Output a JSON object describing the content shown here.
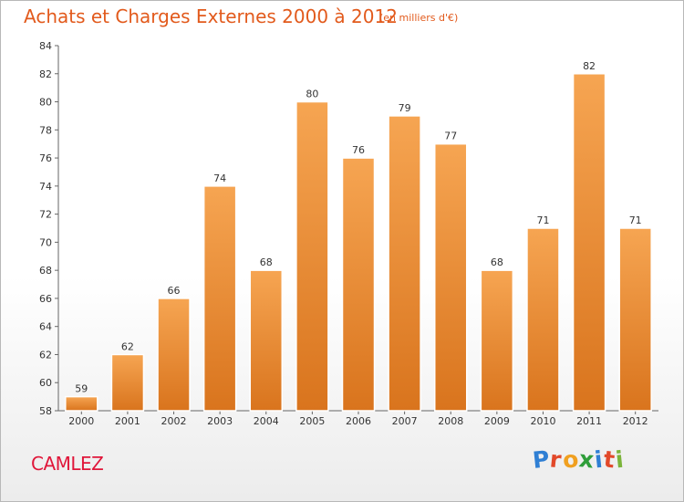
{
  "title": "Achats et Charges Externes 2000 à 2012",
  "subtitle": "(en milliers d'€)",
  "commune": "CAMLEZ",
  "logo": {
    "letters": [
      "P",
      "r",
      "o",
      "x",
      "i",
      "t",
      "i"
    ],
    "colors": [
      "#2f7fd4",
      "#e2492a",
      "#f0a020",
      "#2f9e3a",
      "#2f7fd4",
      "#e2492a",
      "#7bb43a"
    ]
  },
  "chart_data": {
    "type": "bar",
    "title": "Achats et Charges Externes 2000 à 2012",
    "subtitle": "(en milliers d'€)",
    "categories": [
      "2000",
      "2001",
      "2002",
      "2003",
      "2004",
      "2005",
      "2006",
      "2007",
      "2008",
      "2009",
      "2010",
      "2011",
      "2012"
    ],
    "values": [
      59,
      62,
      66,
      74,
      68,
      80,
      76,
      79,
      77,
      68,
      71,
      82,
      71
    ],
    "ylim": [
      58,
      84
    ],
    "yticks": [
      58,
      60,
      62,
      64,
      66,
      68,
      70,
      72,
      74,
      76,
      78,
      80,
      82,
      84
    ],
    "grid": false,
    "bar_color": "#f0983e"
  }
}
